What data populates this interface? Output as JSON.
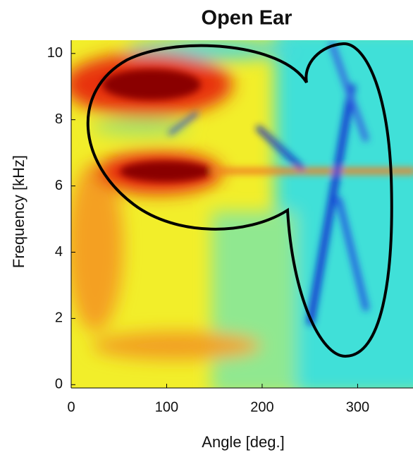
{
  "chart_data": {
    "type": "heatmap",
    "title": "Open Ear",
    "xlabel": "Angle [deg.]",
    "ylabel": "Frequency [kHz]",
    "xlim": [
      0,
      358
    ],
    "xticks": [
      0,
      100,
      200,
      300
    ],
    "ylim": [
      -0.1,
      10.4
    ],
    "yticks": [
      0,
      2,
      4,
      6,
      8,
      10
    ]
  }
}
